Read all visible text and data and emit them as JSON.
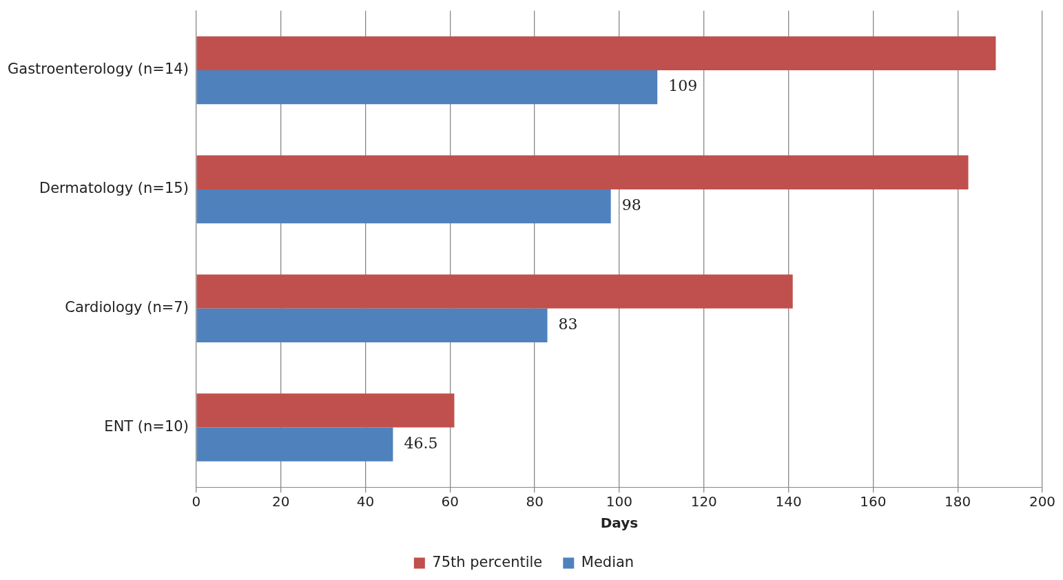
{
  "chart_data": {
    "type": "bar",
    "orientation": "horizontal",
    "xlabel": "Days",
    "categories": [
      "Gastroenterology (n=14)",
      "Dermatology (n=15)",
      "Cardiology (n=7)",
      "ENT (n=10)"
    ],
    "series": [
      {
        "name": "75th percentile",
        "color": "#c0504d",
        "values": [
          189,
          182.5,
          141,
          61
        ]
      },
      {
        "name": "Median",
        "color": "#4f81bd",
        "values": [
          109,
          98,
          83,
          46.5
        ],
        "value_labels": [
          "109",
          "98",
          "83",
          "46.5"
        ]
      }
    ],
    "xlim": [
      0,
      200
    ],
    "xticks": [
      0,
      20,
      40,
      60,
      80,
      100,
      120,
      140,
      160,
      180,
      200
    ],
    "grid": "x",
    "legend": "bottom"
  }
}
